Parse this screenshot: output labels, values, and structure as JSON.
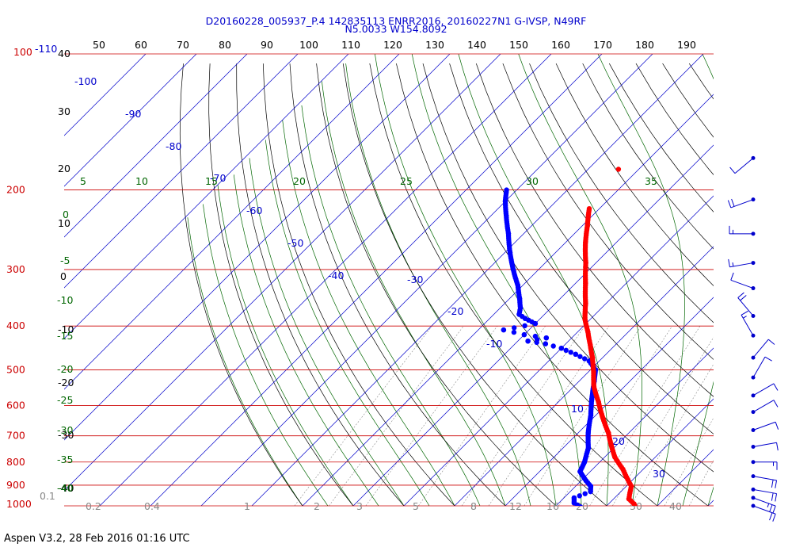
{
  "chart_data": {
    "type": "line",
    "title": "D20160228_005937_P.4 142835113 ENRR2016, 20160227N1 G-IVSP, N49RF",
    "subtitle": "N5.0033 W154.8092",
    "footer": "Aspen V3.2, 28 Feb 2016  01:16 UTC",
    "colors": {
      "isobar": "#cc0000",
      "isotherm": "#0000cc",
      "dry_adiabat": "#000000",
      "moist_adiabat": "#006600",
      "mixing_ratio": "#888888",
      "temperature": "#ff0000",
      "dewpoint": "#0000ff",
      "wind": "#0000cc"
    },
    "pressure_labels": [
      "100",
      "200",
      "300",
      "400",
      "500",
      "600",
      "700",
      "800",
      "900",
      "1000"
    ],
    "top_tick_labels": [
      "50",
      "60",
      "70",
      "80",
      "90",
      "100",
      "110",
      "120",
      "130",
      "140",
      "150",
      "160",
      "170",
      "180",
      "190"
    ],
    "left_top_label": "-110",
    "isotherm_labels": [
      "-100",
      "-90",
      "-80",
      "-70",
      "-60",
      "-50",
      "-40",
      "-30",
      "-20",
      "-10",
      "10",
      "20",
      "30"
    ],
    "height_labels": [
      "40",
      "30",
      "20",
      "10",
      "0",
      "-10",
      "-20",
      "-30",
      "-40"
    ],
    "theta_w_labels": [
      "5",
      "10",
      "15",
      "20",
      "25",
      "30",
      "35"
    ],
    "theta_w_left_labels": [
      "0",
      "-5",
      "-10",
      "-15",
      "-20",
      "-25",
      "-30",
      "-35",
      "-40"
    ],
    "mixing_ratio_labels": [
      "0.1",
      "0.2",
      "0.4",
      "1",
      "2",
      "3",
      "5",
      "8",
      "12",
      "16",
      "20",
      "30",
      "40"
    ],
    "temperature": {
      "name": "Temperature",
      "points": [
        [
          -42,
          220
        ],
        [
          -39,
          240
        ],
        [
          -36,
          262
        ],
        [
          -32,
          290
        ],
        [
          -28,
          322
        ],
        [
          -24,
          357
        ],
        [
          -21,
          387
        ],
        [
          -18,
          412
        ],
        [
          -15,
          440
        ],
        [
          -12,
          470
        ],
        [
          -9,
          505
        ],
        [
          -6,
          545
        ],
        [
          -2,
          590
        ],
        [
          2,
          640
        ],
        [
          6,
          690
        ],
        [
          9,
          735
        ],
        [
          12,
          780
        ],
        [
          16,
          830
        ],
        [
          19,
          875
        ],
        [
          21,
          905
        ],
        [
          22,
          935
        ],
        [
          23,
          965
        ],
        [
          25,
          990
        ],
        [
          26,
          1008
        ]
      ]
    },
    "temperature_isolated": [
      [
        -44,
        180
      ]
    ],
    "dewpoint": {
      "name": "Dewpoint",
      "points": [
        [
          -62,
          200
        ],
        [
          -60,
          212
        ],
        [
          -57,
          228
        ],
        [
          -53,
          250
        ],
        [
          -49,
          275
        ],
        [
          -45,
          300
        ],
        [
          -41,
          325
        ],
        [
          -38,
          348
        ],
        [
          -36,
          365
        ],
        [
          -35,
          377
        ],
        [
          -33,
          385
        ],
        [
          -30,
          395
        ],
        [
          -35,
          408
        ],
        [
          -30,
          418
        ],
        [
          -25,
          425
        ],
        [
          -28,
          432
        ],
        [
          -24,
          438
        ],
        [
          -20,
          448
        ],
        [
          -16,
          462
        ],
        [
          -12,
          478
        ],
        [
          -9,
          500
        ],
        [
          -7,
          530
        ],
        [
          -4,
          580
        ],
        [
          -1,
          630
        ],
        [
          2,
          690
        ],
        [
          5,
          745
        ],
        [
          7,
          800
        ],
        [
          8,
          840
        ],
        [
          11,
          880
        ],
        [
          13,
          905
        ],
        [
          14,
          930
        ],
        [
          12,
          960
        ],
        [
          13,
          985
        ],
        [
          15,
          1005
        ]
      ]
    },
    "wind_barbs": [
      {
        "p": 170,
        "speed": 10,
        "dir": 230
      },
      {
        "p": 210,
        "speed": 20,
        "dir": 250
      },
      {
        "p": 250,
        "speed": 15,
        "dir": 270
      },
      {
        "p": 290,
        "speed": 15,
        "dir": 260
      },
      {
        "p": 330,
        "speed": 10,
        "dir": 290
      },
      {
        "p": 380,
        "speed": 20,
        "dir": 320
      },
      {
        "p": 420,
        "speed": 15,
        "dir": 330
      },
      {
        "p": 470,
        "speed": 10,
        "dir": 40
      },
      {
        "p": 520,
        "speed": 10,
        "dir": 30
      },
      {
        "p": 570,
        "speed": 10,
        "dir": 60
      },
      {
        "p": 620,
        "speed": 10,
        "dir": 60
      },
      {
        "p": 680,
        "speed": 10,
        "dir": 70
      },
      {
        "p": 740,
        "speed": 10,
        "dir": 80
      },
      {
        "p": 800,
        "speed": 15,
        "dir": 90
      },
      {
        "p": 860,
        "speed": 20,
        "dir": 100
      },
      {
        "p": 920,
        "speed": 20,
        "dir": 100
      },
      {
        "p": 960,
        "speed": 25,
        "dir": 110
      },
      {
        "p": 1000,
        "speed": 20,
        "dir": 110
      }
    ]
  }
}
